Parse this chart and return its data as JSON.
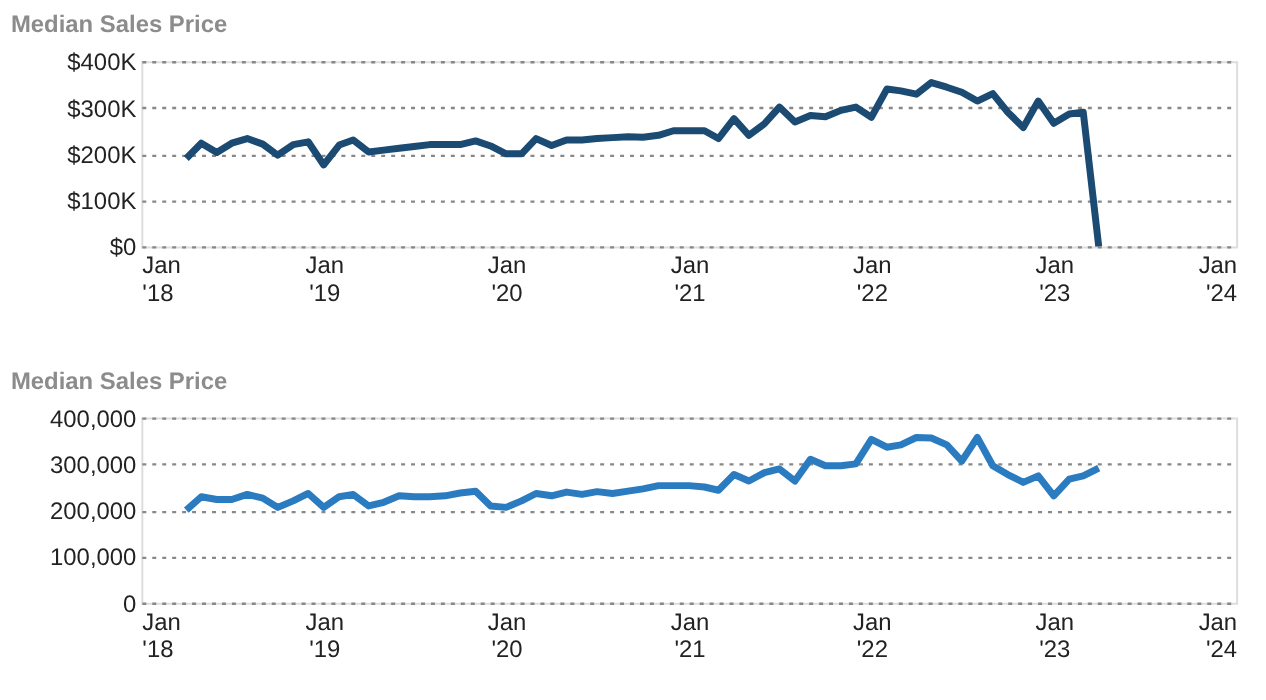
{
  "chart_data": [
    {
      "type": "line",
      "ylabel": "Median Sales Price",
      "grid": "y",
      "legend": false,
      "marker": "none",
      "line_style": "solid",
      "x": [
        "2018-04",
        "2018-05",
        "2018-06",
        "2018-07",
        "2018-08",
        "2018-09",
        "2018-10",
        "2018-11",
        "2018-12",
        "2019-01",
        "2019-02",
        "2019-03",
        "2019-04",
        "2019-05",
        "2019-06",
        "2019-07",
        "2019-08",
        "2019-09",
        "2019-10",
        "2019-11",
        "2019-12",
        "2020-01",
        "2020-02",
        "2020-03",
        "2020-04",
        "2020-05",
        "2020-06",
        "2020-07",
        "2020-08",
        "2020-09",
        "2020-10",
        "2020-11",
        "2020-12",
        "2021-01",
        "2021-02",
        "2021-03",
        "2021-04",
        "2021-05",
        "2021-06",
        "2021-07",
        "2021-08",
        "2021-09",
        "2021-10",
        "2021-11",
        "2021-12",
        "2022-01",
        "2022-02",
        "2022-03",
        "2022-04",
        "2022-05",
        "2022-06",
        "2022-07",
        "2022-08",
        "2022-09",
        "2022-10",
        "2022-11",
        "2022-12",
        "2023-01",
        "2023-02",
        "2023-03",
        "2023-04"
      ],
      "xlim": [
        "2018-01",
        "2024-01"
      ],
      "xticks": [
        {
          "value": "2018-01",
          "label": "Jan\n'18"
        },
        {
          "value": "2019-01",
          "label": "Jan\n'19"
        },
        {
          "value": "2020-01",
          "label": "Jan\n'20"
        },
        {
          "value": "2021-01",
          "label": "Jan\n'21"
        },
        {
          "value": "2022-01",
          "label": "Jan\n'22"
        },
        {
          "value": "2023-01",
          "label": "Jan\n'23"
        },
        {
          "value": "2024-01",
          "label": "Jan\n'24"
        }
      ],
      "ylim": [
        0,
        400000
      ],
      "yticks": [
        {
          "value": 0,
          "label": "$0"
        },
        {
          "value": 100000,
          "label": "$100K"
        },
        {
          "value": 200000,
          "label": "$200K"
        },
        {
          "value": 300000,
          "label": "$300K"
        },
        {
          "value": 400000,
          "label": "$400K"
        }
      ],
      "series": [
        {
          "color": "#1b4a72",
          "values": [
            190000,
            223000,
            203000,
            223000,
            233000,
            221000,
            197000,
            220000,
            226000,
            176000,
            219000,
            230000,
            204000,
            208000,
            212000,
            216000,
            220000,
            220000,
            220000,
            228000,
            217000,
            200000,
            200000,
            233000,
            218000,
            230000,
            230000,
            233000,
            235000,
            237000,
            236000,
            240000,
            250000,
            250000,
            250000,
            233000,
            276000,
            240000,
            265000,
            301000,
            269000,
            283000,
            280000,
            294000,
            301000,
            279000,
            340000,
            336000,
            329000,
            354000,
            344000,
            333000,
            314000,
            330000,
            290000,
            257000,
            314000,
            266000,
            286000,
            290000,
            0
          ]
        }
      ]
    },
    {
      "type": "line",
      "ylabel": "Median Sales Price",
      "grid": "y",
      "legend": false,
      "marker": "none",
      "line_style": "solid",
      "x": [
        "2018-04",
        "2018-05",
        "2018-06",
        "2018-07",
        "2018-08",
        "2018-09",
        "2018-10",
        "2018-11",
        "2018-12",
        "2019-01",
        "2019-02",
        "2019-03",
        "2019-04",
        "2019-05",
        "2019-06",
        "2019-07",
        "2019-08",
        "2019-09",
        "2019-10",
        "2019-11",
        "2019-12",
        "2020-01",
        "2020-02",
        "2020-03",
        "2020-04",
        "2020-05",
        "2020-06",
        "2020-07",
        "2020-08",
        "2020-09",
        "2020-10",
        "2020-11",
        "2020-12",
        "2021-01",
        "2021-02",
        "2021-03",
        "2021-04",
        "2021-05",
        "2021-06",
        "2021-07",
        "2021-08",
        "2021-09",
        "2021-10",
        "2021-11",
        "2021-12",
        "2022-01",
        "2022-02",
        "2022-03",
        "2022-04",
        "2022-05",
        "2022-06",
        "2022-07",
        "2022-08",
        "2022-09",
        "2022-10",
        "2022-11",
        "2022-12",
        "2023-01",
        "2023-02",
        "2023-03",
        "2023-04"
      ],
      "xlim": [
        "2018-01",
        "2024-01"
      ],
      "xticks": [
        {
          "value": "2018-01",
          "label": "Jan\n'18"
        },
        {
          "value": "2019-01",
          "label": "Jan\n'19"
        },
        {
          "value": "2020-01",
          "label": "Jan\n'20"
        },
        {
          "value": "2021-01",
          "label": "Jan\n'21"
        },
        {
          "value": "2022-01",
          "label": "Jan\n'22"
        },
        {
          "value": "2023-01",
          "label": "Jan\n'23"
        },
        {
          "value": "2024-01",
          "label": "Jan\n'24"
        }
      ],
      "ylim": [
        0,
        400000
      ],
      "yticks": [
        {
          "value": 0,
          "label": "0"
        },
        {
          "value": 100000,
          "label": "100,000"
        },
        {
          "value": 200000,
          "label": "200,000"
        },
        {
          "value": 300000,
          "label": "300,000"
        },
        {
          "value": 400000,
          "label": "400,000"
        }
      ],
      "series": [
        {
          "color": "#2b7bc0",
          "values": [
            200000,
            229000,
            223000,
            223000,
            234000,
            226000,
            206000,
            220000,
            236000,
            206000,
            229000,
            234000,
            209000,
            217000,
            231000,
            229000,
            229000,
            231000,
            237000,
            241000,
            209000,
            206000,
            220000,
            236000,
            231000,
            239000,
            234000,
            240000,
            236000,
            241000,
            246000,
            253000,
            253000,
            253000,
            250000,
            243000,
            277000,
            263000,
            281000,
            289000,
            263000,
            310000,
            296000,
            296000,
            300000,
            353000,
            336000,
            341000,
            357000,
            356000,
            341000,
            306000,
            357000,
            296000,
            277000,
            260000,
            274000,
            231000,
            267000,
            274000,
            291000
          ]
        }
      ]
    }
  ]
}
